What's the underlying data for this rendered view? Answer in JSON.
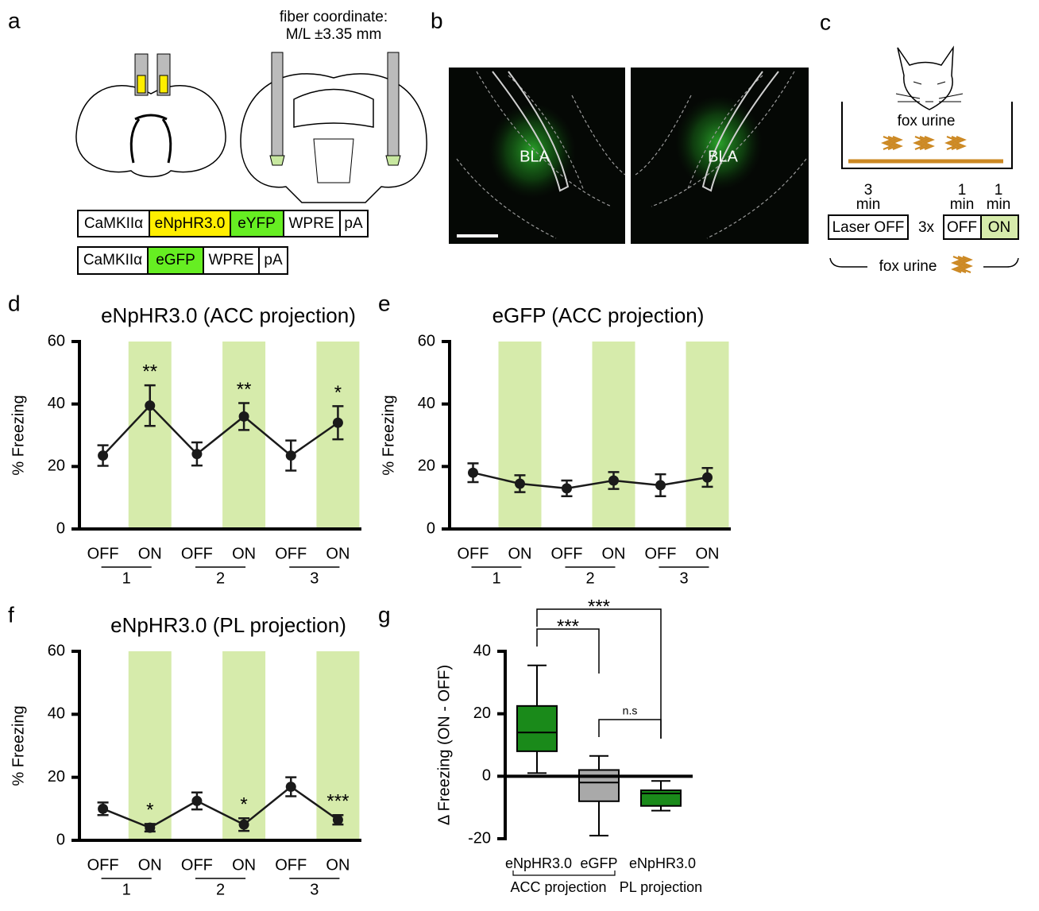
{
  "panel_labels": [
    "a",
    "b",
    "c",
    "d",
    "e",
    "f",
    "g"
  ],
  "panel_a": {
    "fiber_coordinate": [
      "fiber coordinate:",
      "M/L ±3.35 mm"
    ],
    "constructs": [
      [
        "CaMKIIα",
        "eNpHR3.0",
        "eYFP",
        "WPRE",
        "pA"
      ],
      [
        "CaMKIIα",
        "eGFP",
        "WPRE",
        "pA"
      ]
    ]
  },
  "panel_b": {
    "regions": [
      "BLA",
      "BLA"
    ]
  },
  "panel_c": {
    "chamber_label": "fox urine",
    "durations": [
      [
        "3",
        "min"
      ],
      [
        "1",
        "min"
      ],
      [
        "1",
        "min"
      ]
    ],
    "laser_off": "Laser OFF",
    "repeat": "3x",
    "off": "OFF",
    "on": "ON",
    "bracket_label": "fox urine"
  },
  "chart_data": [
    {
      "type": "line",
      "title": "eNpHR3.0 (ACC projection)",
      "ylabel": "% Freezing",
      "categories": [
        "OFF",
        "ON",
        "OFF",
        "ON",
        "OFF",
        "ON"
      ],
      "groups": [
        "1",
        "2",
        "3"
      ],
      "values": [
        23.5,
        39.5,
        24,
        36,
        23.5,
        34
      ],
      "errors": [
        3.3,
        6.5,
        3.7,
        4.3,
        4.8,
        5.3
      ],
      "annotations": [
        null,
        "**",
        null,
        "**",
        null,
        "*"
      ],
      "color": "#1a1a1a",
      "shade_color": "#d6ebab",
      "ylim": [
        0,
        60
      ],
      "yticks": [
        0,
        20,
        40,
        60
      ]
    },
    {
      "type": "line",
      "title": "eGFP (ACC projection)",
      "ylabel": "% Freezing",
      "categories": [
        "OFF",
        "ON",
        "OFF",
        "ON",
        "OFF",
        "ON"
      ],
      "groups": [
        "1",
        "2",
        "3"
      ],
      "values": [
        18,
        14.5,
        13,
        15.5,
        14,
        16.5
      ],
      "errors": [
        3,
        2.7,
        2.5,
        2.7,
        3.5,
        3
      ],
      "annotations": [
        null,
        null,
        null,
        null,
        null,
        null
      ],
      "color": "#1a1a1a",
      "shade_color": "#d6ebab",
      "ylim": [
        0,
        60
      ],
      "yticks": [
        0,
        20,
        40,
        60
      ]
    },
    {
      "type": "line",
      "title": "eNpHR3.0 (PL projection)",
      "ylabel": "% Freezing",
      "categories": [
        "OFF",
        "ON",
        "OFF",
        "ON",
        "OFF",
        "ON"
      ],
      "groups": [
        "1",
        "2",
        "3"
      ],
      "values": [
        10,
        4,
        12.5,
        5,
        17,
        6.5
      ],
      "errors": [
        2,
        1.2,
        2.7,
        2,
        3,
        1.5
      ],
      "annotations": [
        null,
        "*",
        null,
        "*",
        null,
        "***"
      ],
      "color": "#1a1a1a",
      "shade_color": "#d6ebab",
      "ylim": [
        0,
        60
      ],
      "yticks": [
        0,
        20,
        40,
        60
      ]
    },
    {
      "type": "box",
      "ylabel": "Δ Freezing (ON - OFF)",
      "categories": [
        "eNpHR3.0",
        "eGFP",
        "eNpHR3.0"
      ],
      "groups": [
        "ACC projection",
        "PL projection"
      ],
      "whislo": [
        1,
        -19,
        -11
      ],
      "q1": [
        8,
        -8,
        -9.5
      ],
      "median": [
        14,
        -2,
        -5.5
      ],
      "q3": [
        22.5,
        2,
        -4.5
      ],
      "whishi": [
        35.5,
        6.5,
        -1.5
      ],
      "colors": [
        "#1a8a1a",
        "#a9a9a9",
        "#1a8a1a"
      ],
      "comparisons": [
        {
          "pair": [
            0,
            1
          ],
          "label": "***"
        },
        {
          "pair": [
            0,
            2
          ],
          "label": "***"
        },
        {
          "pair": [
            1,
            2
          ],
          "label": "n.s"
        }
      ],
      "ylim": [
        -20,
        40
      ],
      "yticks": [
        -20,
        0,
        20,
        40
      ]
    }
  ]
}
